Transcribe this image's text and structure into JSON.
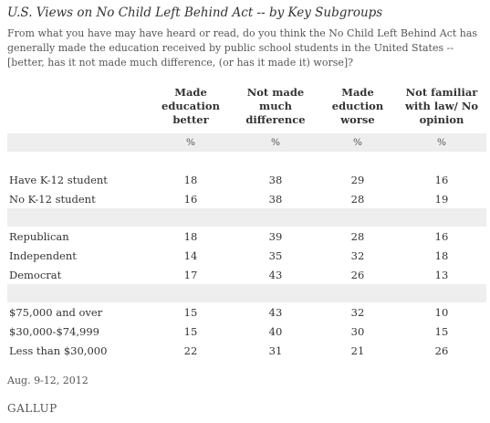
{
  "chart_data": {
    "type": "table",
    "title": "U.S. Views on No Child Left Behind Act -- by Key Subgroups",
    "subtitle": "From what you have may have heard or read, do you think the No Child Left Behind Act has generally made the education received by public school students in the United States -- [better, has it not made much difference, (or has it made it) worse]?",
    "columns": [
      "Made education better",
      "Not made much difference",
      "Made eduction worse",
      "Not familiar with law/ No opinion"
    ],
    "unit": "%",
    "groups": [
      {
        "rows": [
          {
            "label": "Have K-12 student",
            "values": [
              "18",
              "38",
              "29",
              "16"
            ]
          },
          {
            "label": "No K-12 student",
            "values": [
              "16",
              "38",
              "28",
              "19"
            ]
          }
        ]
      },
      {
        "rows": [
          {
            "label": "Republican",
            "values": [
              "18",
              "39",
              "28",
              "16"
            ]
          },
          {
            "label": "Independent",
            "values": [
              "14",
              "35",
              "32",
              "18"
            ]
          },
          {
            "label": "Democrat",
            "values": [
              "17",
              "43",
              "26",
              "13"
            ]
          }
        ]
      },
      {
        "rows": [
          {
            "label": "$75,000 and over",
            "values": [
              "15",
              "43",
              "32",
              "10"
            ]
          },
          {
            "label": "$30,000-$74,999",
            "values": [
              "15",
              "40",
              "30",
              "15"
            ]
          },
          {
            "label": "Less than $30,000",
            "values": [
              "22",
              "31",
              "21",
              "26"
            ]
          }
        ]
      }
    ],
    "note": "Aug. 9-12, 2012",
    "source": "GALLUP"
  }
}
